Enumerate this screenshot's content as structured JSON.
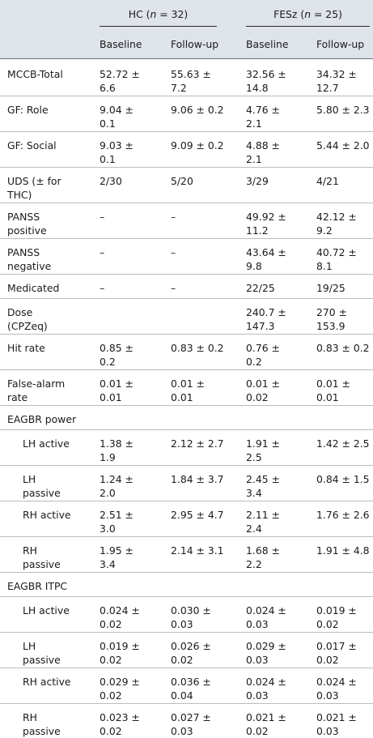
{
  "header": {
    "groups": [
      {
        "label_pre": "HC (",
        "n_label": "n",
        "label_post": " = 32)"
      },
      {
        "label_pre": "FESz (",
        "n_label": "n",
        "label_post": " = 25)"
      }
    ],
    "subcols": [
      "Baseline",
      "Follow-up",
      "Baseline",
      "Follow-up"
    ]
  },
  "rows": [
    {
      "label": [
        "MCCB-Total"
      ],
      "indent": false,
      "cells": [
        [
          "52.72 ±",
          "6.6"
        ],
        [
          "55.63 ±",
          "7.2"
        ],
        [
          "32.56 ±",
          "14.8"
        ],
        [
          "34.32 ±",
          "12.7"
        ]
      ]
    },
    {
      "label": [
        "GF: Role"
      ],
      "indent": false,
      "cells": [
        [
          "9.04 ±",
          "0.1"
        ],
        [
          "9.06 ± 0.2"
        ],
        [
          "4.76 ±",
          "2.1"
        ],
        [
          "5.80 ± 2.3"
        ]
      ]
    },
    {
      "label": [
        "GF: Social"
      ],
      "indent": false,
      "cells": [
        [
          "9.03 ±",
          "0.1"
        ],
        [
          "9.09 ± 0.2"
        ],
        [
          "4.88 ±",
          "2.1"
        ],
        [
          "5.44 ± 2.0"
        ]
      ]
    },
    {
      "label": [
        "UDS (± for",
        "THC)"
      ],
      "indent": false,
      "cells": [
        [
          "2/30"
        ],
        [
          "5/20"
        ],
        [
          "3/29"
        ],
        [
          "4/21"
        ]
      ]
    },
    {
      "label": [
        "PANSS",
        "positive"
      ],
      "indent": false,
      "cells": [
        [
          "–"
        ],
        [
          "–"
        ],
        [
          "49.92 ±",
          "11.2"
        ],
        [
          "42.12 ±",
          "9.2"
        ]
      ]
    },
    {
      "label": [
        "PANSS",
        "negative"
      ],
      "indent": false,
      "cells": [
        [
          "–"
        ],
        [
          "–"
        ],
        [
          "43.64 ±",
          "9.8"
        ],
        [
          "40.72 ±",
          "8.1"
        ]
      ]
    },
    {
      "label": [
        "Medicated"
      ],
      "indent": false,
      "cells": [
        [
          "–"
        ],
        [
          "–"
        ],
        [
          "22/25"
        ],
        [
          "19/25"
        ]
      ]
    },
    {
      "label": [
        "Dose",
        "(CPZeq)"
      ],
      "indent": false,
      "cells": [
        [],
        [],
        [
          "240.7 ±",
          "147.3"
        ],
        [
          "270 ±",
          "153.9"
        ]
      ]
    },
    {
      "label": [
        "Hit rate"
      ],
      "indent": false,
      "cells": [
        [
          "0.85 ±",
          "0.2"
        ],
        [
          "0.83 ± 0.2"
        ],
        [
          "0.76 ±",
          "0.2"
        ],
        [
          "0.83 ± 0.2"
        ]
      ]
    },
    {
      "label": [
        "False-alarm",
        "rate"
      ],
      "indent": false,
      "cells": [
        [
          "0.01 ±",
          "0.01"
        ],
        [
          "0.01 ±",
          "0.01"
        ],
        [
          "0.01 ±",
          "0.02"
        ],
        [
          "0.01 ±",
          "0.01"
        ]
      ]
    },
    {
      "label": [
        "EAGBR power"
      ],
      "indent": false,
      "cells": [
        [],
        [],
        [],
        []
      ]
    },
    {
      "label": [
        "LH active"
      ],
      "indent": true,
      "cells": [
        [
          "1.38 ±",
          "1.9"
        ],
        [
          "2.12 ± 2.7"
        ],
        [
          "1.91 ±",
          "2.5"
        ],
        [
          "1.42 ± 2.5"
        ]
      ]
    },
    {
      "label": [
        "LH",
        "passive"
      ],
      "indent": true,
      "cells": [
        [
          "1.24 ±",
          "2.0"
        ],
        [
          "1.84 ± 3.7"
        ],
        [
          "2.45 ±",
          "3.4"
        ],
        [
          "0.84 ± 1.5"
        ]
      ]
    },
    {
      "label": [
        "RH active"
      ],
      "indent": true,
      "cells": [
        [
          "2.51 ±",
          "3.0"
        ],
        [
          "2.95 ± 4.7"
        ],
        [
          "2.11 ±",
          "2.4"
        ],
        [
          "1.76 ± 2.6"
        ]
      ]
    },
    {
      "label": [
        "RH",
        "passive"
      ],
      "indent": true,
      "cells": [
        [
          "1.95 ±",
          "3.4"
        ],
        [
          "2.14 ± 3.1"
        ],
        [
          "1.68 ±",
          "2.2"
        ],
        [
          "1.91 ± 4.8"
        ]
      ]
    },
    {
      "label": [
        "EAGBR ITPC"
      ],
      "indent": false,
      "cells": [
        [],
        [],
        [],
        []
      ]
    },
    {
      "label": [
        "LH active"
      ],
      "indent": true,
      "cells": [
        [
          "0.024 ±",
          "0.02"
        ],
        [
          "0.030 ±",
          "0.03"
        ],
        [
          "0.024 ±",
          "0.03"
        ],
        [
          "0.019 ±",
          "0.02"
        ]
      ]
    },
    {
      "label": [
        "LH",
        "passive"
      ],
      "indent": true,
      "cells": [
        [
          "0.019 ±",
          "0.02"
        ],
        [
          "0.026 ±",
          "0.02"
        ],
        [
          "0.029 ±",
          "0.03"
        ],
        [
          "0.017 ±",
          "0.02"
        ]
      ]
    },
    {
      "label": [
        "RH active"
      ],
      "indent": true,
      "cells": [
        [
          "0.029 ±",
          "0.02"
        ],
        [
          "0.036 ±",
          "0.04"
        ],
        [
          "0.024 ±",
          "0.03"
        ],
        [
          "0.024 ±",
          "0.03"
        ]
      ]
    },
    {
      "label": [
        "RH",
        "passive"
      ],
      "indent": true,
      "cells": [
        [
          "0.023 ±",
          "0.02"
        ],
        [
          "0.027 ±",
          "0.03"
        ],
        [
          "0.021 ±",
          "0.02"
        ],
        [
          "0.021 ±",
          "0.03"
        ]
      ]
    }
  ]
}
